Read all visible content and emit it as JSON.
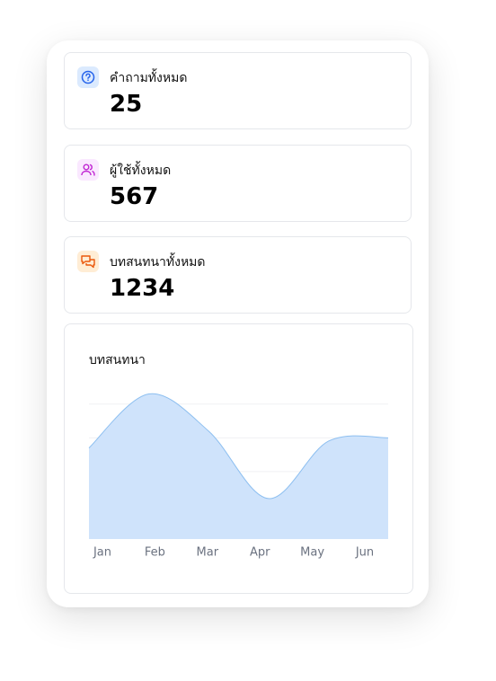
{
  "stats": [
    {
      "label": "คำถามทั้งหมด",
      "value": 25
    },
    {
      "label": "ผู้ใช้ทั้งหมด",
      "value": 567
    },
    {
      "label": "บทสนทนาทั้งหมด",
      "value": 1234
    }
  ],
  "chart_data": {
    "type": "area",
    "title": "บทสนทนา",
    "categories": [
      "Jan",
      "Feb",
      "Mar",
      "Apr",
      "May",
      "Jun"
    ],
    "values": [
      2.7,
      4.3,
      3.2,
      1.2,
      2.9,
      3.0
    ],
    "color": "#cfe3fb",
    "line_color": "#8dbff0",
    "ylim": [
      0,
      4.5
    ],
    "yticks": [
      1,
      2,
      3,
      4
    ],
    "grid": true
  }
}
